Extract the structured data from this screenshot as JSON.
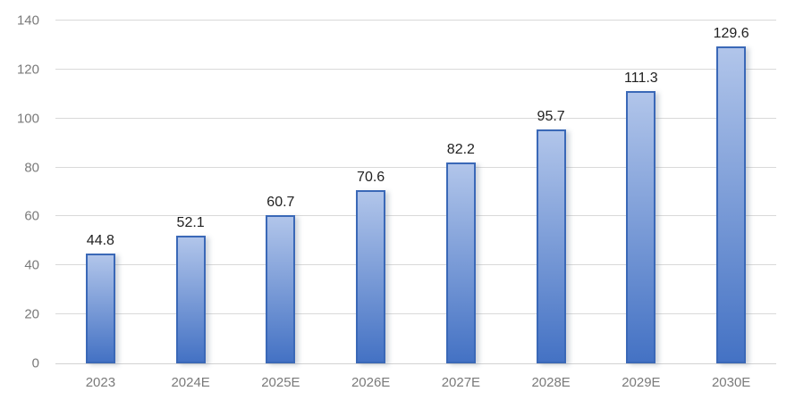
{
  "chart_data": {
    "type": "bar",
    "title": "",
    "xlabel": "",
    "ylabel": "",
    "categories": [
      "2023",
      "2024E",
      "2025E",
      "2026E",
      "2027E",
      "2028E",
      "2029E",
      "2030E"
    ],
    "values": [
      44.8,
      52.1,
      60.7,
      70.6,
      82.2,
      95.7,
      111.3,
      129.6
    ],
    "data_labels": [
      "44.8",
      "52.1",
      "60.7",
      "70.6",
      "82.2",
      "95.7",
      "111.3",
      "129.6"
    ],
    "ylim": [
      0,
      140
    ],
    "y_ticks": [
      0,
      20,
      40,
      60,
      80,
      100,
      120,
      140
    ],
    "grid": true,
    "legend_position": "none"
  },
  "style": {
    "background": "#FFFFFF",
    "bar_fill_top": "#B1C5EA",
    "bar_fill_bottom": "#4472C4",
    "bar_border": "#3A68B7",
    "gridline_color": "#D9D9D9",
    "axis_line_color": "#D3D3D3",
    "tick_label_color": "#7A7A7A",
    "data_label_color": "#212121"
  }
}
